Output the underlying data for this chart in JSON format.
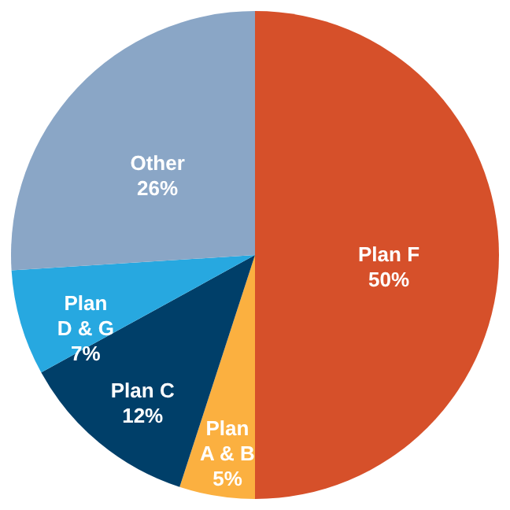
{
  "chart_data": {
    "type": "pie",
    "categories": [
      "Plan F",
      "Plan A & B",
      "Plan C",
      "Plan D & G",
      "Other"
    ],
    "values": [
      50,
      5,
      12,
      7,
      26
    ],
    "colors": [
      "#d6502a",
      "#fbb040",
      "#003f69",
      "#27a8e0",
      "#8aa6c6"
    ],
    "value_labels": [
      "50%",
      "5%",
      "12%",
      "7%",
      "26%"
    ]
  }
}
